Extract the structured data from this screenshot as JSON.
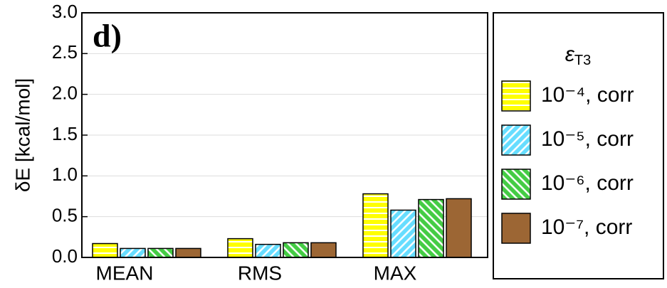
{
  "chart_data": {
    "type": "bar",
    "panel_label": "d)",
    "y_label": "δE [kcal/mol]",
    "categories": [
      "MEAN",
      "RMS",
      "MAX"
    ],
    "legend_title": {
      "symbol": "ε",
      "subscript": "T3"
    },
    "series": [
      {
        "name": "10⁻⁴, corr",
        "color": "#ffff00",
        "pattern": "horizontal",
        "values": [
          0.17,
          0.23,
          0.78
        ]
      },
      {
        "name": "10⁻⁵, corr",
        "color": "#66ddff",
        "pattern": "diagonal-up",
        "values": [
          0.11,
          0.16,
          0.58
        ]
      },
      {
        "name": "10⁻⁶, corr",
        "color": "#44cc44",
        "pattern": "diagonal-down",
        "values": [
          0.11,
          0.18,
          0.71
        ]
      },
      {
        "name": "10⁻⁷, corr",
        "color": "#9c6634",
        "pattern": "solid",
        "values": [
          0.11,
          0.18,
          0.72
        ]
      }
    ],
    "ylim": [
      0,
      3.0
    ],
    "yticks": [
      {
        "value": 0,
        "label": "0.0"
      },
      0.5,
      {
        "value": 1,
        "label": "1.0"
      },
      1.5,
      {
        "value": 2,
        "label": "2.0"
      },
      2.5,
      {
        "value": 3,
        "label": "3.0"
      }
    ],
    "grid": true,
    "legend": "right"
  }
}
